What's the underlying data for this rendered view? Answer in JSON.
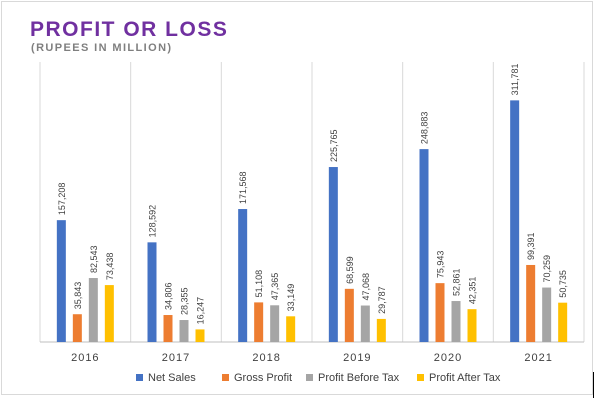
{
  "chart_data": {
    "type": "bar",
    "title": "PROFIT OR LOSS",
    "subtitle": "(RUPEES IN MILLION)",
    "categories": [
      "2016",
      "2017",
      "2018",
      "2019",
      "2020",
      "2021"
    ],
    "series": [
      {
        "name": "Net Sales",
        "color": "#4472c4",
        "values": [
          157208,
          128592,
          171568,
          225765,
          248883,
          311781
        ],
        "labels": [
          "157,208",
          "128,592",
          "171,568",
          "225,765",
          "248,883",
          "311,781"
        ]
      },
      {
        "name": "Gross Profit",
        "color": "#ed7d31",
        "values": [
          35843,
          34806,
          51108,
          68599,
          75943,
          99391
        ],
        "labels": [
          "35,843",
          "34,806",
          "51,108",
          "68,599",
          "75,943",
          "99,391"
        ]
      },
      {
        "name": "Profit Before Tax",
        "color": "#a5a5a5",
        "values": [
          82543,
          28355,
          47365,
          47068,
          52861,
          70259
        ],
        "labels": [
          "82,543",
          "28,355",
          "47,365",
          "47,068",
          "52,861",
          "70,259"
        ]
      },
      {
        "name": "Profit After Tax",
        "color": "#ffc000",
        "values": [
          73438,
          16247,
          33149,
          29787,
          42351,
          50735
        ],
        "labels": [
          "73,438",
          "16,247",
          "33,149",
          "29,787",
          "42,351",
          "50,735"
        ]
      }
    ],
    "ylim": [
      0,
      320000
    ],
    "grid": "vertical category separators",
    "legend_position": "bottom"
  }
}
